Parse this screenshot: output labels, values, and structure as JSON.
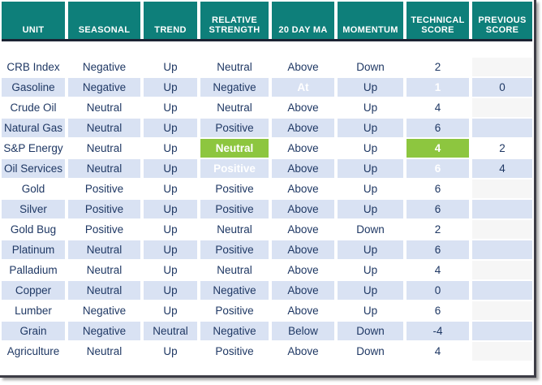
{
  "table": {
    "columns": [
      "UNIT",
      "SEASONAL",
      "TREND",
      "RELATIVE STRENGTH",
      "20 DAY MA",
      "MOMENTUM",
      "TECHNICAL SCORE",
      "PREVIOUS SCORE"
    ],
    "column_keys": [
      "unit",
      "seasonal",
      "trend",
      "relative-strength",
      "20-day-ma",
      "momentum",
      "technical-score",
      "previous-score"
    ],
    "rows": [
      [
        "CRB Index",
        "Negative",
        "Up",
        "Neutral",
        "Above",
        "Down",
        "2",
        ""
      ],
      [
        "Gasoline",
        "Negative",
        "Up",
        "Negative",
        "At",
        "Up",
        "1",
        "0"
      ],
      [
        "Crude Oil",
        "Neutral",
        "Up",
        "Neutral",
        "Above",
        "Up",
        "4",
        ""
      ],
      [
        "Natural Gas",
        "Neutral",
        "Up",
        "Positive",
        "Above",
        "Up",
        "6",
        ""
      ],
      [
        "S&P Energy",
        "Neutral",
        "Up",
        "Neutral",
        "Above",
        "Up",
        "4",
        "2"
      ],
      [
        "Oil Services",
        "Neutral",
        "Up",
        "Positive",
        "Above",
        "Up",
        "6",
        "4"
      ],
      [
        "Gold",
        "Positive",
        "Up",
        "Positive",
        "Above",
        "Up",
        "6",
        ""
      ],
      [
        "Silver",
        "Positive",
        "Up",
        "Positive",
        "Above",
        "Up",
        "6",
        ""
      ],
      [
        "Gold Bug",
        "Positive",
        "Up",
        "Neutral",
        "Above",
        "Down",
        "2",
        ""
      ],
      [
        "Platinum",
        "Neutral",
        "Up",
        "Positive",
        "Above",
        "Up",
        "6",
        ""
      ],
      [
        "Palladium",
        "Neutral",
        "Up",
        "Neutral",
        "Above",
        "Up",
        "4",
        ""
      ],
      [
        "Copper",
        "Neutral",
        "Up",
        "Negative",
        "Above",
        "Up",
        "0",
        ""
      ],
      [
        "Lumber",
        "Negative",
        "Up",
        "Positive",
        "Above",
        "Up",
        "6",
        ""
      ],
      [
        "Grain",
        "Negative",
        "Neutral",
        "Negative",
        "Below",
        "Down",
        "-4",
        ""
      ],
      [
        "Agriculture",
        "Neutral",
        "Up",
        "Positive",
        "Above",
        "Down",
        "4",
        ""
      ]
    ],
    "green_highlight_cells": [
      [
        1,
        4
      ],
      [
        1,
        6
      ],
      [
        4,
        3
      ],
      [
        4,
        6
      ],
      [
        5,
        3
      ],
      [
        5,
        6
      ]
    ]
  },
  "colors": {
    "header_teal": "#0e7f7a",
    "row_alt_blue": "#d9e2f3",
    "highlight_green": "#8dc63f",
    "text_navy": "#1f3864",
    "header_divider_dark": "#1c2333",
    "frame_dark": "#3d3d46"
  }
}
